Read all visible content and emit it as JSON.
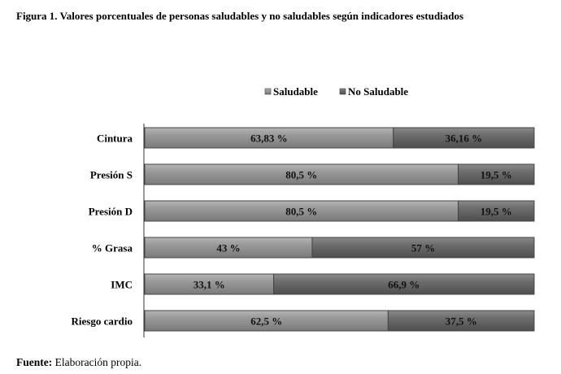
{
  "figure": {
    "title": "Figura 1. Valores porcentuales de personas saludables y no saludables según indicadores estudiados",
    "footer_label": "Fuente:",
    "footer_text": "Elaboración propia."
  },
  "chart_data": {
    "type": "bar",
    "orientation": "horizontal",
    "stacked": true,
    "categories": [
      "Cintura",
      "Presión S",
      "Presión D",
      "% Grasa",
      "IMC",
      "Riesgo cardio"
    ],
    "series": [
      {
        "name": "Saludable",
        "values": [
          63.83,
          80.5,
          80.5,
          43,
          33.1,
          62.5
        ],
        "labels": [
          "63,83 %",
          "80,5 %",
          "80,5 %",
          "43 %",
          "33,1 %",
          "62,5 %"
        ]
      },
      {
        "name": "No Saludable",
        "values": [
          36.16,
          19.5,
          19.5,
          57,
          66.9,
          37.5
        ],
        "labels": [
          "36,16 %",
          "19,5 %",
          "19,5 %",
          "57 %",
          "66,9 %",
          "37,5 %"
        ]
      }
    ],
    "xlim": [
      0,
      100
    ],
    "legend_position": "top-center",
    "grid": false,
    "colors": {
      "saludable": "#8c8c8c",
      "no_saludable": "#5f5f5f",
      "border": "#444444",
      "axis": "#333333"
    }
  }
}
